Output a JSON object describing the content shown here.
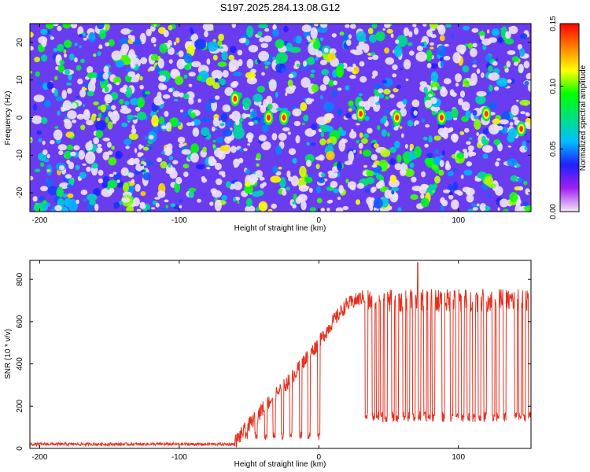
{
  "chart_data": [
    {
      "type": "heatmap",
      "title": "S197.2025.284.13.08.G12",
      "xlabel": "Height of straight line (km)",
      "ylabel": "Frequency (Hz)",
      "xlim": [
        -207,
        152
      ],
      "ylim": [
        -25,
        25
      ],
      "xticks": [
        -200,
        -100,
        0,
        100
      ],
      "yticks": [
        -20,
        -10,
        0,
        10,
        20
      ],
      "colorbar": {
        "label": "Normalized spectral amplitude",
        "range": [
          0.0,
          0.15
        ],
        "ticks": [
          "0.00",
          "0.05",
          "0.10",
          "0.15"
        ],
        "colors": [
          "#f2e8f6",
          "#a020f0",
          "#2020ff",
          "#00c0ff",
          "#00e080",
          "#00ff00",
          "#ffff00",
          "#ff8000",
          "#ff0000"
        ]
      },
      "hotspots": [
        {
          "x": -60,
          "y": 5
        },
        {
          "x": -36,
          "y": 0
        },
        {
          "x": -25,
          "y": 0
        },
        {
          "x": 30,
          "y": 1
        },
        {
          "x": 56,
          "y": 0
        },
        {
          "x": 88,
          "y": 0
        },
        {
          "x": 120,
          "y": 1
        },
        {
          "x": 145,
          "y": -3
        }
      ]
    },
    {
      "type": "line",
      "xlabel": "Height of straight line (km)",
      "ylabel": "SNR (10 * v/v)",
      "xlim": [
        -207,
        152
      ],
      "ylim": [
        0,
        890
      ],
      "xticks": [
        -200,
        -100,
        0,
        100
      ],
      "yticks": [
        0,
        200,
        400,
        600,
        800
      ],
      "color": "#e8301e",
      "series": [
        {
          "name": "SNR",
          "baseline": {
            "x_range": [
              -207,
              -60
            ],
            "value": 20
          },
          "rise": [
            {
              "x": -60,
              "y": 30
            },
            {
              "x": -50,
              "y": 110
            },
            {
              "x": -40,
              "y": 190
            },
            {
              "x": -30,
              "y": 260
            },
            {
              "x": -20,
              "y": 330
            },
            {
              "x": -10,
              "y": 420
            },
            {
              "x": 0,
              "y": 500
            },
            {
              "x": 10,
              "y": 600
            },
            {
              "x": 20,
              "y": 680
            },
            {
              "x": 33,
              "y": 720
            }
          ],
          "rise_dropouts": [
            -52,
            -45,
            -38,
            -32,
            -26,
            -20,
            -13,
            -7,
            0
          ],
          "plateau": {
            "x_range": [
              33,
              152
            ],
            "value": 700
          },
          "plateau_dips": [
            33,
            38,
            41,
            44,
            47,
            52,
            55,
            60,
            63,
            67,
            71,
            75,
            78,
            81,
            88,
            94,
            98,
            102,
            106,
            110,
            114,
            118,
            124,
            127,
            132,
            140,
            143,
            146,
            150
          ],
          "dip_level": 150,
          "peak": {
            "x": 71,
            "y": 880
          }
        }
      ]
    }
  ]
}
